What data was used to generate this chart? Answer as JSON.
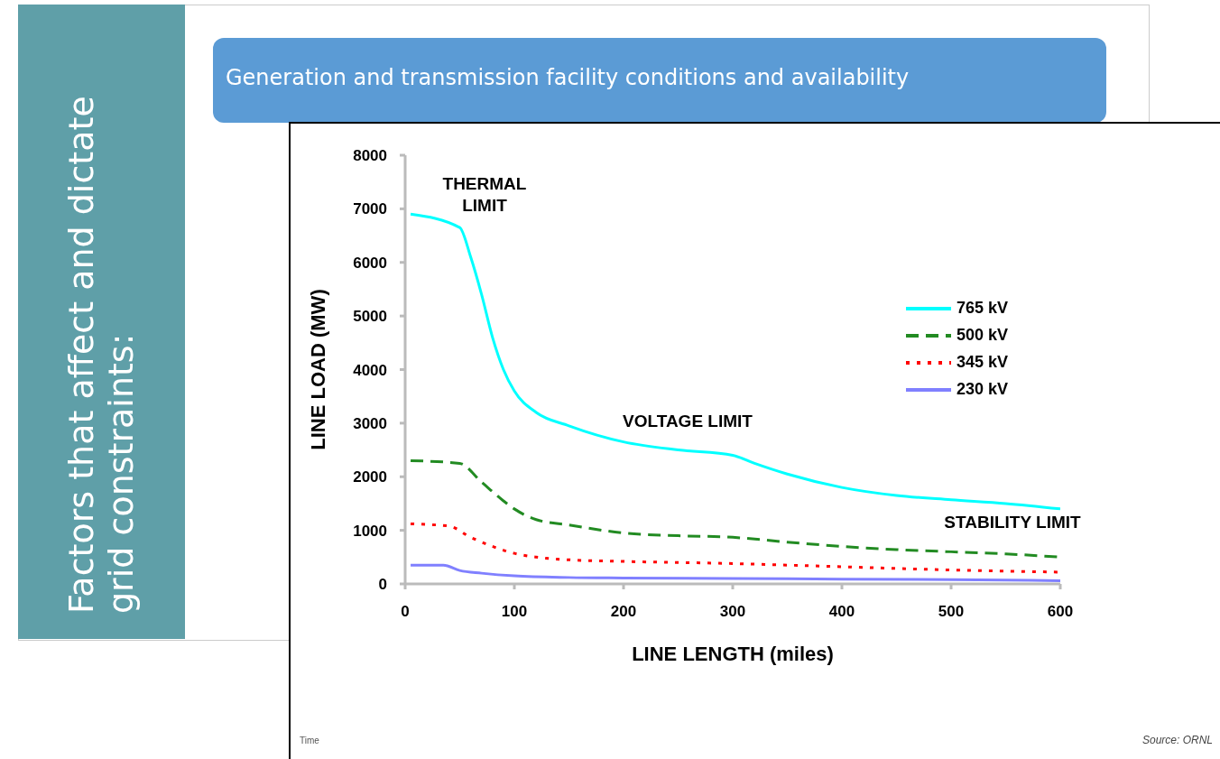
{
  "chart_data": {
    "type": "line",
    "xlabel": "LINE LENGTH (miles)",
    "ylabel": "LINE LOAD (MW)",
    "xlim": [
      0,
      600
    ],
    "xticks": [
      0,
      100,
      200,
      300,
      400,
      500,
      600
    ],
    "ylim": [
      0,
      8000
    ],
    "yticks": [
      0,
      1000,
      2000,
      3000,
      4000,
      5000,
      6000,
      7000,
      8000
    ],
    "grid": false,
    "legend": "top right",
    "marker": "none",
    "series": [
      {
        "name": "765 kV",
        "color": "#00ffff",
        "line_style": "solid",
        "x": [
          5,
          50,
          60,
          70,
          80,
          90,
          100,
          120,
          150,
          200,
          250,
          300,
          320,
          350,
          400,
          450,
          500,
          550,
          600
        ],
        "values": [
          6900,
          6650,
          6100,
          5400,
          4600,
          4000,
          3600,
          3200,
          2950,
          2650,
          2500,
          2400,
          2250,
          2050,
          1800,
          1650,
          1570,
          1500,
          1400
        ]
      },
      {
        "name": "500 kV",
        "color": "#228b22",
        "line_style": "dashed",
        "x": [
          5,
          50,
          70,
          90,
          100,
          120,
          150,
          200,
          250,
          300,
          350,
          400,
          450,
          500,
          550,
          600
        ],
        "values": [
          2300,
          2250,
          1900,
          1550,
          1400,
          1200,
          1100,
          950,
          900,
          870,
          780,
          700,
          640,
          600,
          560,
          500
        ]
      },
      {
        "name": "345 kV",
        "color": "#ff0000",
        "line_style": "dotted",
        "x": [
          5,
          40,
          60,
          80,
          100,
          120,
          150,
          200,
          300,
          400,
          500,
          600
        ],
        "values": [
          1120,
          1080,
          870,
          700,
          570,
          500,
          450,
          420,
          380,
          320,
          260,
          220
        ]
      },
      {
        "name": "230 kV",
        "color": "#8080ff",
        "line_style": "solid",
        "x": [
          5,
          35,
          50,
          70,
          100,
          150,
          200,
          300,
          400,
          500,
          600
        ],
        "values": [
          350,
          350,
          250,
          200,
          150,
          120,
          110,
          100,
          90,
          80,
          60
        ]
      }
    ],
    "annotations": [
      "Factors that affect and dictate grid constraints:",
      "Generation and transmission facility conditions and availability",
      "Time",
      "Source: ORNL",
      "THERMAL LIMIT",
      "VOLTAGE LIMIT",
      "STABILITY LIMIT"
    ]
  }
}
